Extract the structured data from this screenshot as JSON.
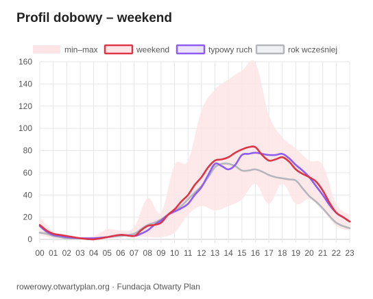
{
  "title": "Profil dobowy – weekend",
  "footer": "rowerowy.otwartyplan.org · Fundacja Otwarty Plan",
  "chart_data": {
    "type": "line",
    "categories": [
      "00",
      "01",
      "02",
      "03",
      "04",
      "05",
      "06",
      "07",
      "08",
      "09",
      "10",
      "11",
      "12",
      "13",
      "14",
      "15",
      "16",
      "17",
      "18",
      "19",
      "20",
      "21",
      "22",
      "23"
    ],
    "ylim": [
      0,
      160
    ],
    "yticks": [
      0,
      20,
      40,
      60,
      80,
      100,
      120,
      140,
      160
    ],
    "grid": true,
    "legend_position": "top",
    "band": {
      "name": "min–max",
      "color": "#fde4e6",
      "x": [
        0,
        1,
        2,
        3,
        4,
        5,
        6,
        7,
        8,
        9,
        10,
        11,
        12,
        13,
        14,
        15,
        16,
        17,
        18,
        19,
        20,
        21,
        22,
        23
      ],
      "min": [
        4,
        1,
        1,
        0,
        0,
        1,
        2,
        3,
        2,
        2,
        6,
        22,
        30,
        26,
        30,
        36,
        50,
        32,
        50,
        32,
        36,
        26,
        12,
        8
      ],
      "max": [
        20,
        7,
        4,
        2,
        3,
        9,
        8,
        11,
        37,
        24,
        67,
        71,
        116,
        135,
        144,
        152,
        159,
        112,
        92,
        82,
        71,
        67,
        32,
        22
      ]
    },
    "series": [
      {
        "name": "weekend",
        "color": "#dc3545",
        "x": [
          0,
          0.5,
          1,
          1.5,
          2,
          3,
          4,
          5,
          6,
          7,
          7.5,
          8,
          8.5,
          9,
          9.5,
          10,
          10.5,
          11,
          11.5,
          12,
          12.5,
          13,
          13.5,
          14,
          14.5,
          15,
          15.5,
          16,
          16.5,
          17,
          17.5,
          18,
          18.5,
          19,
          19.5,
          20,
          20.5,
          21,
          21.5,
          22,
          22.5,
          23
        ],
        "values": [
          13,
          8,
          5,
          4,
          3,
          1,
          0,
          2,
          4,
          3,
          8,
          12,
          13,
          15,
          22,
          27,
          34,
          40,
          49,
          56,
          65,
          71,
          72,
          74,
          78,
          81,
          83,
          83,
          76,
          71,
          72,
          74,
          70,
          63,
          59,
          56,
          52,
          44,
          33,
          24,
          20,
          16
        ]
      },
      {
        "name": "typowy ruch",
        "color": "#8e5cf2",
        "x": [
          0,
          0.5,
          1,
          1.5,
          2,
          3,
          4,
          5,
          6,
          7,
          7.5,
          8,
          8.5,
          9,
          9.5,
          10,
          10.5,
          11,
          11.5,
          12,
          12.5,
          13,
          13.5,
          14,
          14.5,
          15,
          15.5,
          16,
          16.5,
          17,
          17.5,
          18,
          18.5,
          19,
          19.5,
          20,
          20.5,
          21,
          21.5,
          22,
          22.5,
          23
        ],
        "values": [
          12,
          7,
          4,
          3,
          2,
          1,
          1,
          2,
          4,
          3,
          5,
          8,
          13,
          17,
          22,
          25,
          28,
          32,
          40,
          47,
          58,
          68,
          66,
          63,
          67,
          76,
          77,
          78,
          77,
          76,
          76,
          77,
          73,
          67,
          62,
          56,
          48,
          40,
          31,
          24,
          20,
          16
        ]
      },
      {
        "name": "rok wcześniej",
        "color": "#b4b6bc",
        "x": [
          0,
          0.5,
          1,
          1.5,
          2,
          3,
          4,
          5,
          6,
          7,
          7.5,
          8,
          8.5,
          9,
          9.5,
          10,
          10.5,
          11,
          11.5,
          12,
          12.5,
          13,
          13.5,
          14,
          14.5,
          15,
          15.5,
          16,
          16.5,
          17,
          17.5,
          18,
          18.5,
          19,
          19.5,
          20,
          20.5,
          21,
          21.5,
          22,
          22.5,
          23
        ],
        "values": [
          6,
          5,
          3,
          2,
          1,
          1,
          1,
          2,
          3,
          5,
          9,
          13,
          15,
          18,
          22,
          26,
          30,
          36,
          42,
          48,
          56,
          65,
          68,
          68,
          66,
          62,
          62,
          63,
          61,
          58,
          56,
          55,
          54,
          53,
          46,
          39,
          34,
          28,
          21,
          15,
          12,
          10
        ]
      }
    ]
  }
}
